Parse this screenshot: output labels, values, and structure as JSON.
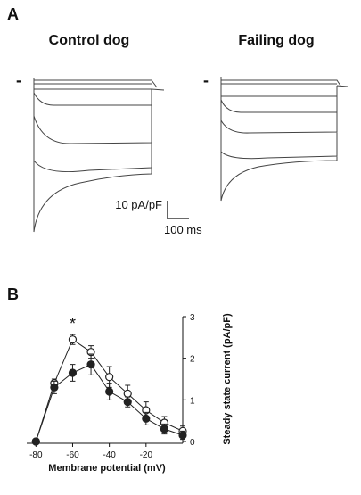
{
  "panel_a": {
    "label": "A",
    "left_title": "Control dog",
    "right_title": "Failing dog",
    "marker": "-",
    "scale_y": "10 pA/pF",
    "scale_x": "100 ms"
  },
  "chart_data": {
    "type": "line",
    "panel": "B",
    "xlabel": "Membrane potential (mV)",
    "ylabel": "Steady state current (pA/pF)",
    "x": [
      -80,
      -70,
      -60,
      -50,
      -40,
      -30,
      -20,
      -10,
      0
    ],
    "series": [
      {
        "marker": "open",
        "color": "#222222",
        "values": [
          0.0,
          1.4,
          2.45,
          2.15,
          1.55,
          1.15,
          0.75,
          0.45,
          0.25
        ],
        "errors": [
          0.05,
          0.1,
          0.12,
          0.15,
          0.25,
          0.2,
          0.2,
          0.15,
          0.12
        ]
      },
      {
        "marker": "filled",
        "color": "#222222",
        "values": [
          0.0,
          1.3,
          1.65,
          1.85,
          1.2,
          0.95,
          0.55,
          0.3,
          0.15
        ],
        "errors": [
          0.05,
          0.15,
          0.2,
          0.25,
          0.2,
          0.12,
          0.15,
          0.12,
          0.1
        ]
      }
    ],
    "annotation": {
      "x": -60,
      "text": "*"
    },
    "xlim": [
      -85,
      0
    ],
    "xticks": [
      -80,
      -60,
      -40,
      -20
    ],
    "ylim": [
      0,
      3
    ],
    "yticks": [
      0,
      1,
      2,
      3
    ]
  }
}
